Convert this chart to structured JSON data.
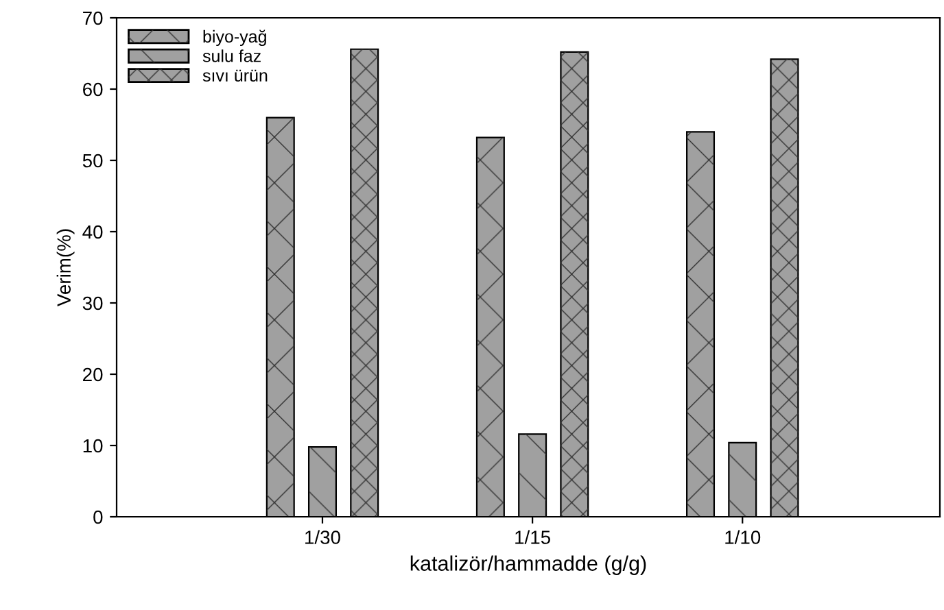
{
  "chart_data": {
    "type": "bar",
    "xlabel": "katalizör/hammadde (g/g)",
    "ylabel": "Verim(%)",
    "categories": [
      "1/30",
      "1/15",
      "1/10"
    ],
    "series": [
      {
        "name": "biyo-yağ",
        "color": "#a0a0a0",
        "values": [
          56,
          53.2,
          54
        ]
      },
      {
        "name": "sulu faz",
        "color": "#a0a0a0",
        "values": [
          9.8,
          11.6,
          10.4
        ]
      },
      {
        "name": "sıvı ürün",
        "color": "#a0a0a0",
        "values": [
          65.6,
          65.2,
          64.2
        ]
      }
    ],
    "ylim": [
      0,
      70
    ],
    "yticks": [
      0,
      10,
      20,
      30,
      40,
      50,
      60,
      70
    ],
    "grid": false,
    "legend": "top left"
  }
}
